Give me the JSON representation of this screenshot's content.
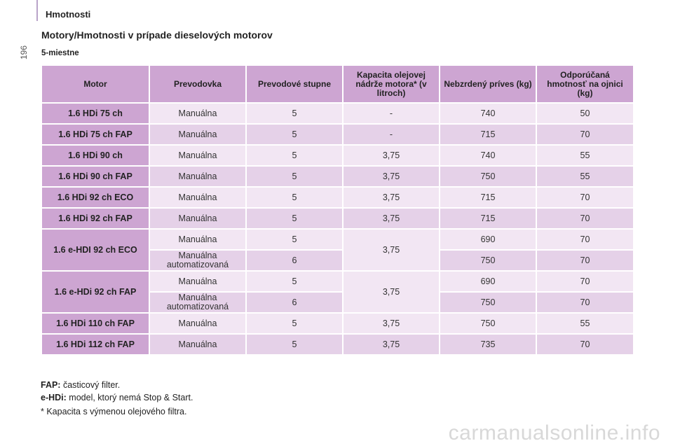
{
  "header": {
    "section_title": "Hmotnosti",
    "page_number": "196"
  },
  "heading": "Motory/Hmotnosti v prípade dieselových motorov",
  "subheading": "5-miestne",
  "table": {
    "columns": [
      "Motor",
      "Prevodovka",
      "Prevodové stupne",
      "Kapacita olejovej nádrže motora* (v litroch)",
      "Nebzrdený príves (kg)",
      "Odporúčaná hmotnosť na ojnici (kg)"
    ],
    "rows": [
      {
        "motor": "1.6 HDi 75 ch",
        "gearbox": "Manuálna",
        "gears": "5",
        "oil": "-",
        "trailer": "740",
        "nose": "50"
      },
      {
        "motor": "1.6 HDi 75 ch FAP",
        "gearbox": "Manuálna",
        "gears": "5",
        "oil": "-",
        "trailer": "715",
        "nose": "70"
      },
      {
        "motor": "1.6 HDi 90 ch",
        "gearbox": "Manuálna",
        "gears": "5",
        "oil": "3,75",
        "trailer": "740",
        "nose": "55"
      },
      {
        "motor": "1.6 HDi 90 ch FAP",
        "gearbox": "Manuálna",
        "gears": "5",
        "oil": "3,75",
        "trailer": "750",
        "nose": "55"
      },
      {
        "motor": "1.6 HDi 92 ch ECO",
        "gearbox": "Manuálna",
        "gears": "5",
        "oil": "3,75",
        "trailer": "715",
        "nose": "70"
      },
      {
        "motor": "1.6 HDi 92 ch FAP",
        "gearbox": "Manuálna",
        "gears": "5",
        "oil": "3,75",
        "trailer": "715",
        "nose": "70"
      }
    ],
    "group_eco": {
      "motor": "1.6 e-HDI 92 ch ECO",
      "oil": "3,75",
      "sub": [
        {
          "gearbox": "Manuálna",
          "gears": "5",
          "trailer": "690",
          "nose": "70"
        },
        {
          "gearbox": "Manuálna automatizovaná",
          "gears": "6",
          "trailer": "750",
          "nose": "70"
        }
      ]
    },
    "group_fap": {
      "motor": "1.6 e-HDi 92 ch FAP",
      "oil": "3,75",
      "sub": [
        {
          "gearbox": "Manuálna",
          "gears": "5",
          "trailer": "690",
          "nose": "70"
        },
        {
          "gearbox": "Manuálna automatizovaná",
          "gears": "6",
          "trailer": "750",
          "nose": "70"
        }
      ]
    },
    "tail_rows": [
      {
        "motor": "1.6 HDi 110 ch FAP",
        "gearbox": "Manuálna",
        "gears": "5",
        "oil": "3,75",
        "trailer": "750",
        "nose": "55"
      },
      {
        "motor": "1.6 HDi 112 ch FAP",
        "gearbox": "Manuálna",
        "gears": "5",
        "oil": "3,75",
        "trailer": "735",
        "nose": "70"
      }
    ]
  },
  "notes": {
    "fap_term": "FAP:",
    "fap_text": "časticový filter.",
    "ehdi_term": "e-HDi:",
    "ehdi_text": "model, ktorý nemá Stop & Start.",
    "footnote": "* Kapacita s výmenou olejového filtra."
  },
  "watermark": "carmanualsonline.info",
  "colors": {
    "header_bg": "#cda5d2",
    "row_light": "#f2e6f3",
    "row_dark": "#e5d1e8"
  }
}
